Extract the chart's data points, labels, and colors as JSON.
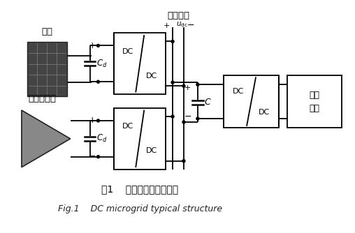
{
  "title_cn": "图1    直流微电网典型结构",
  "title_en": "Fig.1    DC microgrid typical structure",
  "bg_color": "#ffffff",
  "lc": "#000000",
  "lw": 1.3,
  "label_chuneng": "储能",
  "label_fenbushi": "分布式电源",
  "label_zhiliuмuxian": "直流母线",
  "label_load": "直流\n负载",
  "label_C": "C",
  "label_udc": "u_{dc}"
}
